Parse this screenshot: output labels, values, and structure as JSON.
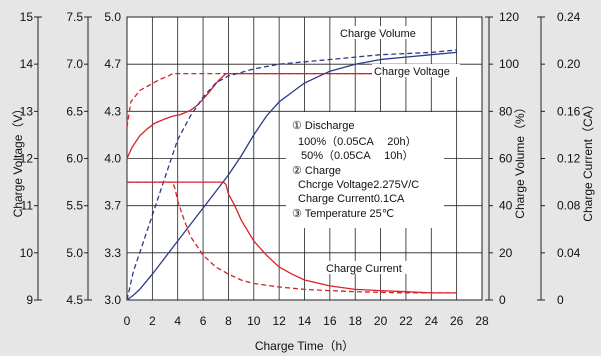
{
  "chart_data": {
    "type": "line",
    "xlabel": "Charge Time（h）",
    "x_ticks": [
      "0",
      "2",
      "4",
      "6",
      "8",
      "10",
      "12",
      "14",
      "16",
      "18",
      "20",
      "22",
      "24",
      "26",
      "28"
    ],
    "xlim": [
      0,
      28
    ],
    "axes": [
      {
        "label": "Charge Voltage（V）",
        "ticks": [
          "9",
          "10",
          "11",
          "12",
          "13",
          "14",
          "15"
        ],
        "range": [
          9,
          15
        ]
      },
      {
        "label": "",
        "ticks": [
          "4.5",
          "5.0",
          "5.5",
          "6.0",
          "6.5",
          "7.0",
          "7.5"
        ],
        "range": [
          4.5,
          7.5
        ]
      },
      {
        "label": "",
        "ticks": [
          "3.0",
          "3.3",
          "3.7",
          "4.0",
          "4.3",
          "4.7",
          "5.0"
        ],
        "range": [
          3.0,
          5.0
        ]
      },
      {
        "label": "Charge Volume（%）",
        "ticks": [
          "0",
          "20",
          "40",
          "60",
          "80",
          "100",
          "120"
        ],
        "range": [
          0,
          120
        ]
      },
      {
        "label": "Charge Current（CA）",
        "ticks": [
          "0",
          "0.04",
          "0.08",
          "0.12",
          "0.16",
          "0.20",
          "0.24"
        ],
        "range": [
          0,
          0.24
        ]
      }
    ],
    "curve_labels": {
      "volume": "Charge Volume",
      "voltage": "Charge Voltage",
      "current": "Charge Current"
    },
    "series": [
      {
        "kind": "voltage",
        "style": "solid",
        "axis": 2,
        "x": [
          0,
          0.4,
          1,
          1.6,
          2.2,
          3,
          3.6,
          4.2,
          5,
          5.6,
          6.4,
          7.2,
          7.8,
          10,
          14,
          20,
          26
        ],
        "y": [
          4.0,
          4.08,
          4.16,
          4.21,
          4.25,
          4.28,
          4.3,
          4.31,
          4.34,
          4.38,
          4.46,
          4.55,
          4.6,
          4.6,
          4.6,
          4.6,
          4.6
        ]
      },
      {
        "kind": "voltage",
        "style": "dashed",
        "axis": 2,
        "x": [
          0,
          0.3,
          1,
          1.8,
          2.6,
          3.2,
          3.6,
          4,
          7,
          10,
          14,
          20,
          26
        ],
        "y": [
          4.22,
          4.4,
          4.48,
          4.52,
          4.56,
          4.58,
          4.6,
          4.6,
          4.6,
          4.6,
          4.6,
          4.6,
          4.6
        ]
      },
      {
        "kind": "volume",
        "style": "solid",
        "axis": 3,
        "x": [
          0,
          0.5,
          1,
          2,
          3,
          4,
          5,
          6,
          7,
          8,
          9,
          10,
          11,
          12,
          14,
          16,
          18,
          20,
          22,
          24,
          26
        ],
        "y": [
          0,
          2,
          4.5,
          11,
          18,
          25,
          32,
          39,
          46,
          53,
          61,
          70,
          78,
          84,
          92,
          97,
          100,
          102,
          103,
          104,
          105
        ]
      },
      {
        "kind": "volume",
        "style": "dashed",
        "axis": 3,
        "x": [
          0,
          0.5,
          1,
          2,
          3,
          4,
          5,
          6,
          7,
          8,
          10,
          12,
          14,
          16,
          18,
          20,
          22,
          24,
          26
        ],
        "y": [
          0,
          12,
          20,
          36,
          52,
          68,
          78,
          86,
          92,
          95,
          98,
          100,
          101,
          102,
          103,
          104,
          104.5,
          105,
          106
        ]
      },
      {
        "kind": "current",
        "style": "solid",
        "axis": 4,
        "x": [
          0,
          2,
          4,
          6,
          7.6,
          7.8,
          8,
          8.5,
          9,
          10,
          11,
          12,
          13,
          14,
          16,
          18,
          20,
          22,
          24,
          26
        ],
        "y": [
          0.1,
          0.1,
          0.1,
          0.1,
          0.1,
          0.098,
          0.09,
          0.08,
          0.068,
          0.05,
          0.038,
          0.028,
          0.022,
          0.017,
          0.012,
          0.009,
          0.008,
          0.007,
          0.006,
          0.006
        ]
      },
      {
        "kind": "current",
        "style": "dashed",
        "axis": 4,
        "x": [
          0,
          1,
          2,
          3,
          3.6,
          3.8,
          4,
          4.5,
          5,
          6,
          7,
          8,
          9,
          10,
          12,
          14,
          16,
          18,
          20,
          22,
          24,
          26
        ],
        "y": [
          0.1,
          0.1,
          0.1,
          0.1,
          0.1,
          0.094,
          0.084,
          0.068,
          0.054,
          0.038,
          0.028,
          0.022,
          0.017,
          0.014,
          0.011,
          0.009,
          0.008,
          0.007,
          0.0065,
          0.006,
          0.006,
          0.006
        ]
      }
    ],
    "annotations": [
      "①  Discharge",
      "100%（0.05CA　 20h）",
      "50%（0.05CA　 10h）",
      "②  Charge",
      "Chcrge Voltage2.275V/C",
      "Charge Current0.1CA",
      "③  Temperature 25℃"
    ],
    "grid": true,
    "colors": {
      "voltage_current": "#d8232a",
      "volume": "#2b3a8a",
      "grid": "#222222",
      "text": "#111111"
    }
  }
}
